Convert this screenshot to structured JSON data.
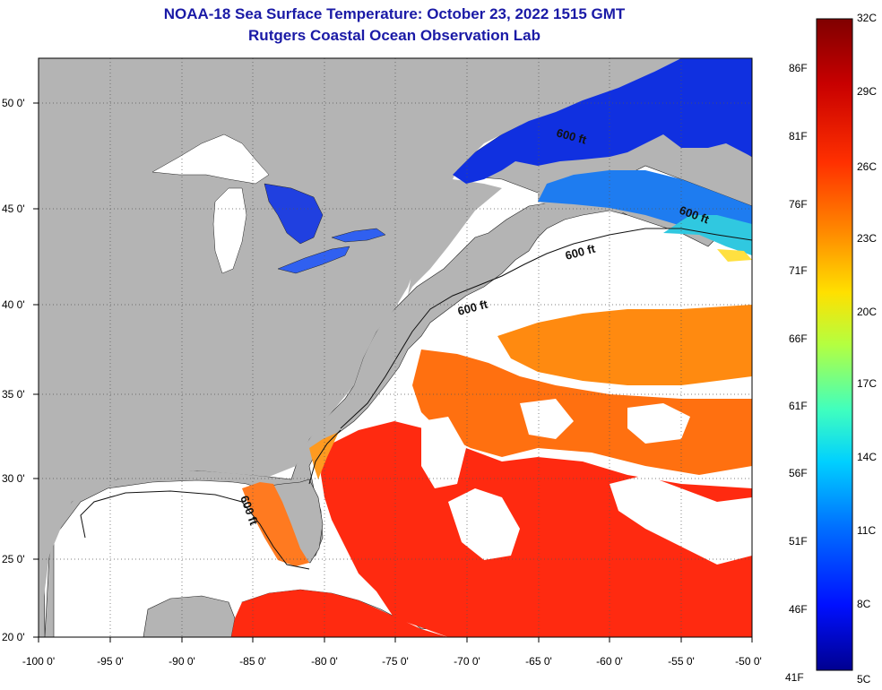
{
  "header": {
    "title": "NOAA-18 Sea Surface Temperature:  October 23, 2022 1515 GMT",
    "subtitle": "Rutgers Coastal Ocean Observation Lab"
  },
  "map": {
    "lon_labels": [
      "-100 0'",
      "-95 0'",
      "-90 0'",
      "-85 0'",
      "-80 0'",
      "-75 0'",
      "-70 0'",
      "-65 0'",
      "-60 0'",
      "-55 0'",
      "-50 0'"
    ],
    "lat_labels": [
      "50 0'",
      "45 0'",
      "40 0'",
      "35 0'",
      "30 0'",
      "25 0'",
      "20 0'"
    ],
    "isobath_labels": [
      "600 ft",
      "600 ft",
      "600 ft",
      "600 ft",
      "600 ft"
    ],
    "land_color": "#b4b4b4",
    "no_data_color": "#ffffff"
  },
  "colorbar": {
    "fahrenheit_labels": [
      "86F",
      "81F",
      "76F",
      "71F",
      "66F",
      "61F",
      "56F",
      "51F",
      "46F",
      "41F"
    ],
    "celsius_labels": [
      "32C",
      "29C",
      "26C",
      "23C",
      "20C",
      "17C",
      "14C",
      "11C",
      "8C",
      "5C"
    ],
    "colors": [
      "#7f0000",
      "#c80000",
      "#ff3000",
      "#ff8c00",
      "#ffe000",
      "#b4ff40",
      "#40ffbe",
      "#00d0ff",
      "#0070ff",
      "#0010ff",
      "#000090"
    ]
  }
}
